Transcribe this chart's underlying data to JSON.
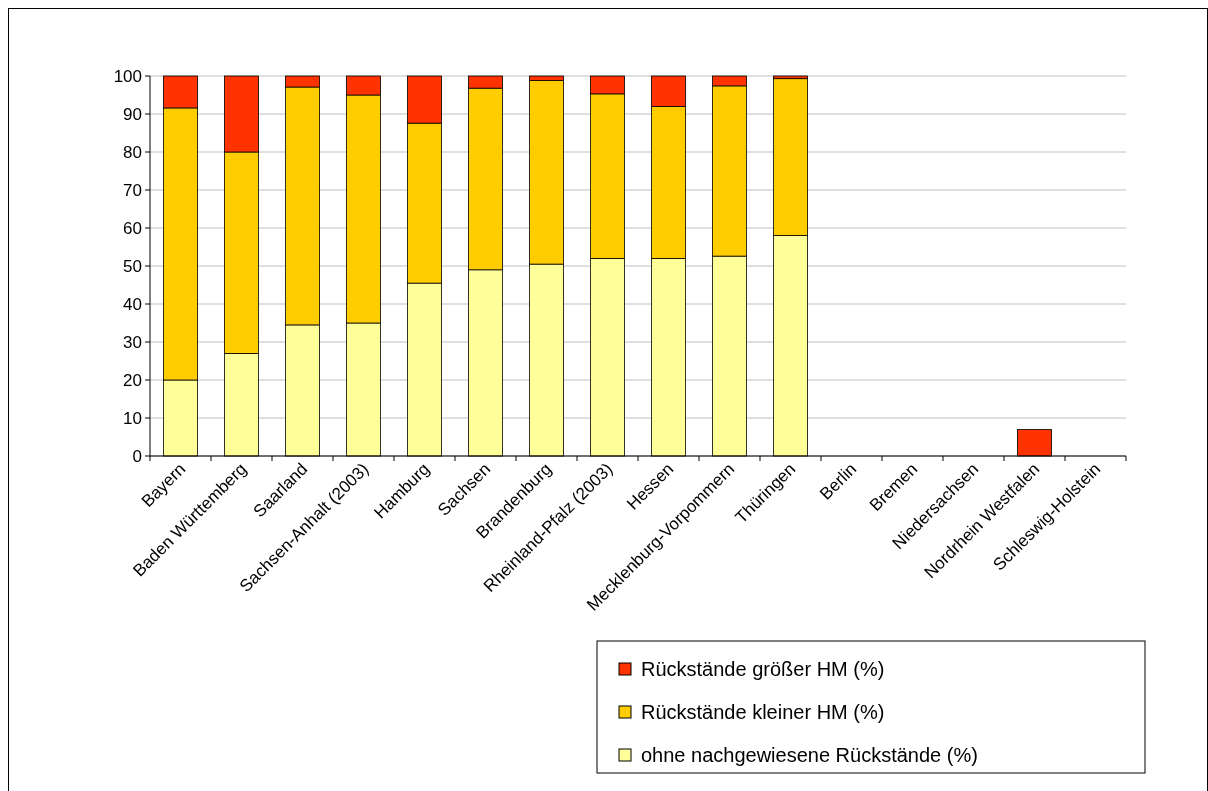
{
  "chart_data": {
    "type": "bar",
    "stacked": true,
    "categories": [
      "Bayern",
      "Baden Württemberg",
      "Saarland",
      "Sachsen-Anhalt (2003)",
      "Hamburg",
      "Sachsen",
      "Brandenburg",
      "Rheinland-Pfalz (2003)",
      "Hessen",
      "Mecklenburg-Vorpommern",
      "Thüringen",
      "Berlin",
      "Bremen",
      "Niedersachsen",
      "Nordrhein Westfalen",
      "Schleswig-Holstein"
    ],
    "series": [
      {
        "name": "ohne nachgewiesene Rückstände (%)",
        "color": "#ffff99",
        "values": [
          20,
          27,
          34.5,
          35,
          45.5,
          49,
          50.5,
          52,
          52,
          52.6,
          58,
          null,
          null,
          null,
          null,
          null
        ]
      },
      {
        "name": "Rückstände kleiner HM (%)",
        "color": "#ffcc00",
        "values": [
          71.6,
          53,
          62.6,
          60,
          42.1,
          47.8,
          48.3,
          43.3,
          40,
          44.8,
          41.3,
          null,
          null,
          null,
          null,
          null
        ]
      },
      {
        "name": "Rückstände größer HM (%)",
        "color": "#ff3300",
        "values": [
          8.4,
          20,
          2.9,
          5,
          12.4,
          3.2,
          1.2,
          4.7,
          8,
          2.6,
          0.7,
          null,
          null,
          null,
          7,
          null
        ]
      }
    ],
    "ylim": [
      0,
      100
    ],
    "yticks": [
      0,
      10,
      20,
      30,
      40,
      50,
      60,
      70,
      80,
      90,
      100
    ],
    "grid": "y",
    "legend": "bottom right"
  }
}
